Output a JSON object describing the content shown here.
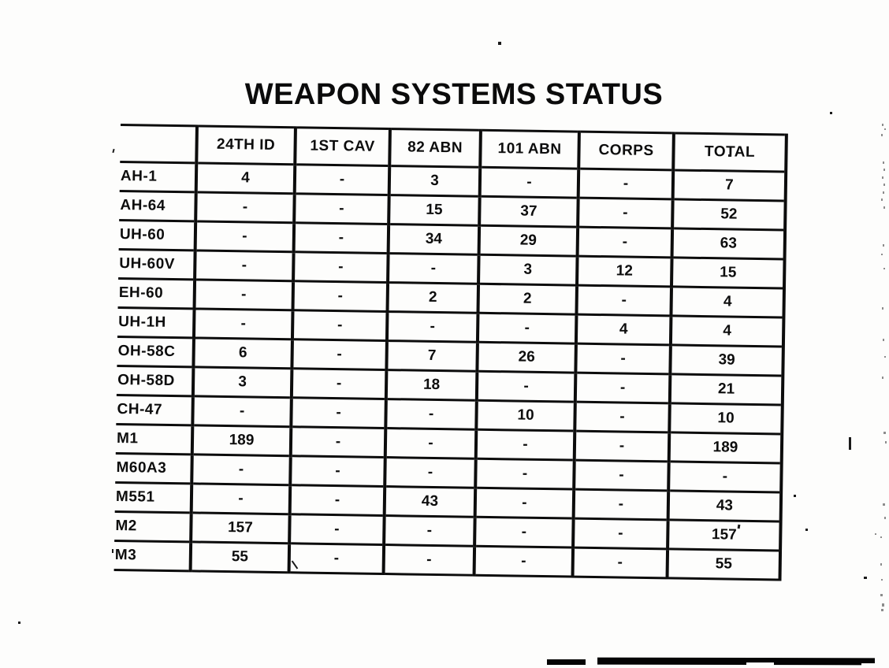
{
  "title": "WEAPON SYSTEMS STATUS",
  "table": {
    "columns": [
      "",
      "24TH ID",
      "1ST CAV",
      "82 ABN",
      "101 ABN",
      "CORPS",
      "TOTAL"
    ],
    "rows": [
      {
        "label": "AH-1",
        "values": [
          "4",
          "-",
          "3",
          "-",
          "-",
          "7"
        ]
      },
      {
        "label": "AH-64",
        "values": [
          "-",
          "-",
          "15",
          "37",
          "-",
          "52"
        ]
      },
      {
        "label": "UH-60",
        "values": [
          "-",
          "-",
          "34",
          "29",
          "-",
          "63"
        ]
      },
      {
        "label": "UH-60V",
        "values": [
          "-",
          "-",
          "-",
          "3",
          "12",
          "15"
        ]
      },
      {
        "label": "EH-60",
        "values": [
          "-",
          "-",
          "2",
          "2",
          "-",
          "4"
        ]
      },
      {
        "label": "UH-1H",
        "values": [
          "-",
          "-",
          "-",
          "-",
          "4",
          "4"
        ]
      },
      {
        "label": "OH-58C",
        "values": [
          "6",
          "-",
          "7",
          "26",
          "-",
          "39"
        ]
      },
      {
        "label": "OH-58D",
        "values": [
          "3",
          "-",
          "18",
          "-",
          "-",
          "21"
        ]
      },
      {
        "label": "CH-47",
        "values": [
          "-",
          "-",
          "-",
          "10",
          "-",
          "10"
        ]
      },
      {
        "label": "M1",
        "values": [
          "189",
          "-",
          "-",
          "-",
          "-",
          "189"
        ]
      },
      {
        "label": "M60A3",
        "values": [
          "-",
          "-",
          "-",
          "-",
          "-",
          "-"
        ]
      },
      {
        "label": "M551",
        "values": [
          "-",
          "-",
          "43",
          "-",
          "-",
          "43"
        ]
      },
      {
        "label": "M2",
        "values": [
          "157",
          "-",
          "-",
          "-",
          "-",
          "157"
        ]
      },
      {
        "label": "M3",
        "values": [
          "55",
          "-",
          "-",
          "-",
          "-",
          "55"
        ]
      }
    ]
  },
  "ink_color": "#0c0c0c",
  "paper_color": "#fdfdfc"
}
